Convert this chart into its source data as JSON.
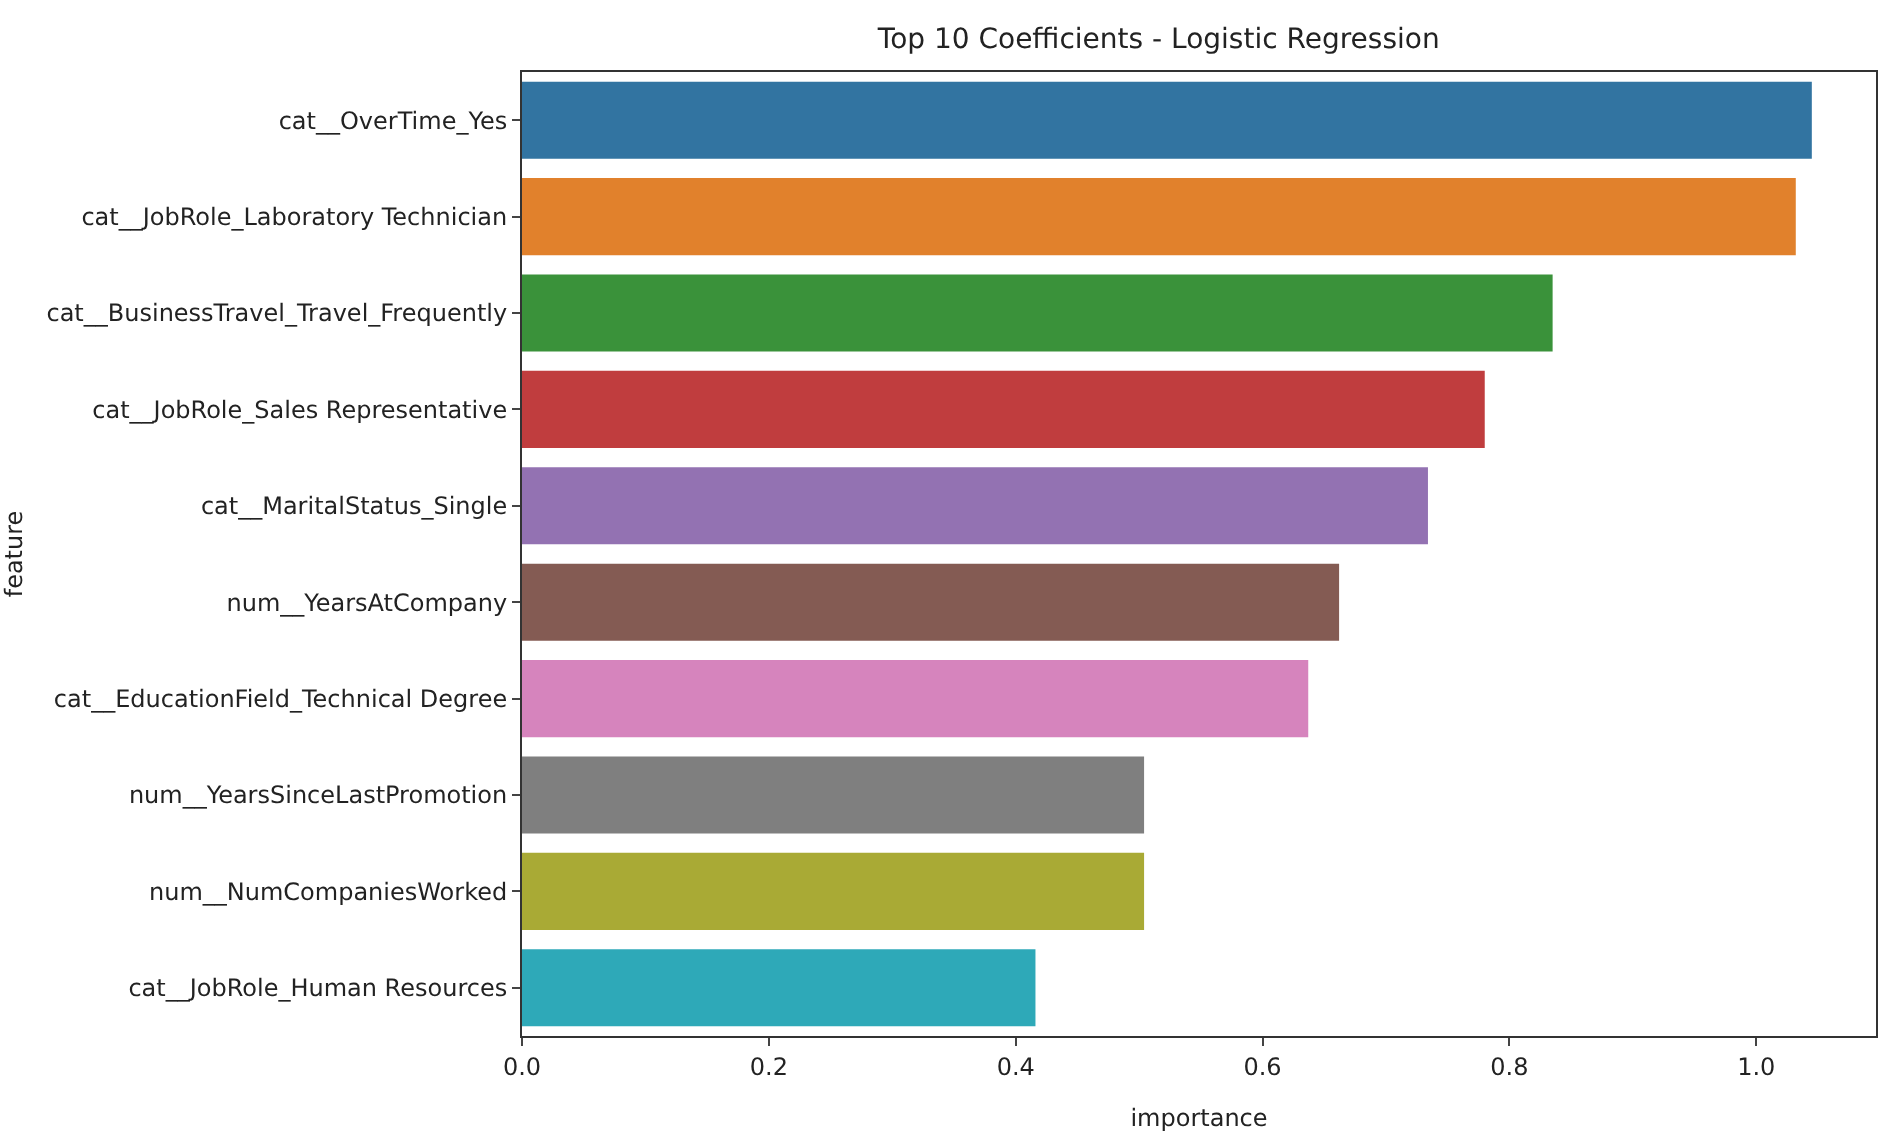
{
  "chart_data": {
    "type": "bar",
    "orientation": "horizontal",
    "title": "Top 10 Coefficients - Logistic Regression",
    "xlabel": "importance",
    "ylabel": "feature",
    "categories": [
      "cat__OverTime_Yes",
      "cat__JobRole_Laboratory Technician",
      "cat__BusinessTravel_Travel_Frequently",
      "cat__JobRole_Sales Representative",
      "cat__MaritalStatus_Single",
      "num__YearsAtCompany",
      "cat__EducationField_Technical Degree",
      "num__YearsSinceLastPromotion",
      "num__NumCompaniesWorked",
      "cat__JobRole_Human Resources"
    ],
    "values": [
      1.045,
      1.032,
      0.835,
      0.78,
      0.734,
      0.662,
      0.637,
      0.504,
      0.504,
      0.416
    ],
    "colors": [
      "#3274a1",
      "#e1812c",
      "#3a923a",
      "#c03d3e",
      "#9372b2",
      "#845b53",
      "#d684bd",
      "#7f7f7f",
      "#a9aa35",
      "#2ea9b8"
    ],
    "xlim": [
      0,
      1.097
    ],
    "xticks": [
      {
        "value": 0,
        "label": "0.0"
      },
      0.2,
      0.4,
      0.6,
      0.8,
      {
        "value": 1,
        "label": "1.0"
      }
    ],
    "legend": false
  }
}
